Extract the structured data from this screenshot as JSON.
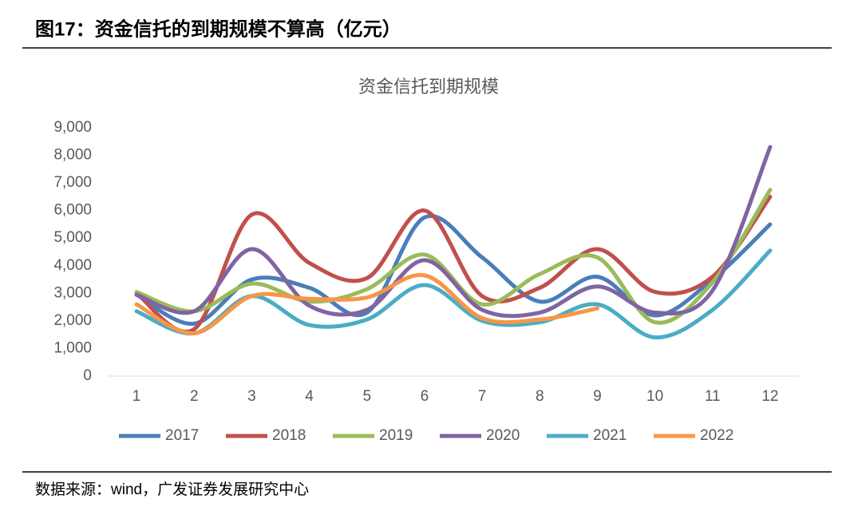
{
  "header": {
    "title": "图17：资金信托的到期规模不算高（亿元）"
  },
  "chart_data": {
    "type": "line",
    "title": "资金信托到期规模",
    "categories": [
      "1",
      "2",
      "3",
      "4",
      "5",
      "6",
      "7",
      "8",
      "9",
      "10",
      "11",
      "12"
    ],
    "series": [
      {
        "name": "2017",
        "color": "#4a7ebb",
        "values": [
          2950,
          1900,
          3500,
          3200,
          2300,
          5750,
          4300,
          2700,
          3600,
          2200,
          3500,
          5500
        ]
      },
      {
        "name": "2018",
        "color": "#c0504d",
        "values": [
          3000,
          1700,
          5850,
          4100,
          3550,
          6000,
          2900,
          3200,
          4600,
          3050,
          3600,
          6500
        ]
      },
      {
        "name": "2019",
        "color": "#9bbb59",
        "values": [
          3050,
          2350,
          3350,
          2700,
          3150,
          4400,
          2600,
          3700,
          4300,
          1950,
          3400,
          6750
        ]
      },
      {
        "name": "2020",
        "color": "#8064a2",
        "values": [
          2950,
          2350,
          4600,
          2550,
          2400,
          4200,
          2400,
          2300,
          3250,
          2300,
          3100,
          8300
        ]
      },
      {
        "name": "2021",
        "color": "#4bacc6",
        "values": [
          2350,
          1550,
          2900,
          1850,
          2050,
          3300,
          2000,
          1950,
          2600,
          1400,
          2400,
          4550
        ]
      },
      {
        "name": "2022",
        "color": "#f79646",
        "values": [
          2600,
          1550,
          2900,
          2800,
          2850,
          3650,
          2100,
          2050,
          2450,
          null,
          null,
          null
        ]
      }
    ],
    "ylim": [
      0,
      9000
    ],
    "yticks": [
      0,
      {
        "value": 1000,
        "label": "1,000"
      },
      {
        "value": 2000,
        "label": "2,000"
      },
      {
        "value": 3000,
        "label": "3,000"
      },
      {
        "value": 4000,
        "label": "4,000"
      },
      {
        "value": 5000,
        "label": "5,000"
      },
      {
        "value": 6000,
        "label": "6,000"
      },
      {
        "value": 7000,
        "label": "7,000"
      },
      {
        "value": 8000,
        "label": "8,000"
      },
      {
        "value": 9000,
        "label": "9,000"
      }
    ],
    "legend": "bottom"
  },
  "footer": {
    "source": "数据来源：wind，广发证券发展研究中心"
  }
}
